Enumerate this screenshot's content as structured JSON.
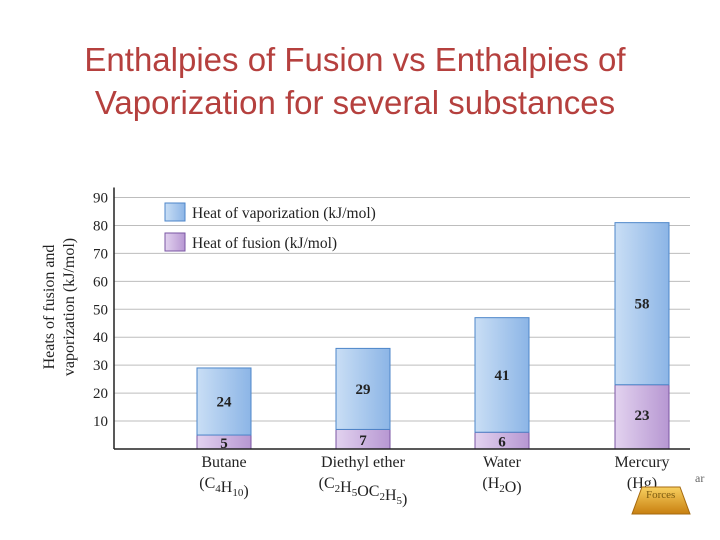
{
  "slide": {
    "title_line1": "Enthalpies of Fusion vs Enthalpies of",
    "title_line2": "Vaporization for several substances",
    "footer_fragment": "ar",
    "footer_icon_label": "Forces"
  },
  "colors": {
    "title": "#b5403e",
    "vaporization_top": "#c9def5",
    "vaporization_bottom": "#8cb5e6",
    "vaporization_stroke": "#4d86c9",
    "fusion_top": "#e2d2ef",
    "fusion_bottom": "#b797d2",
    "fusion_stroke": "#7a56a3",
    "axis": "#222222",
    "grid": "#bdbdbd",
    "nav_icon": "#e0a020"
  },
  "chart_data": {
    "type": "bar",
    "stacked": true,
    "title": "",
    "ylabel_line1": "Heats of fusion and",
    "ylabel_line2": "vaporization (kJ/mol)",
    "xlabel": "",
    "ylim": [
      0,
      90
    ],
    "yticks": [
      10,
      20,
      30,
      40,
      50,
      60,
      70,
      80,
      90
    ],
    "grid": true,
    "legend_position": "top-left",
    "categories": [
      {
        "name": "Butane",
        "formula": "(C4H10)",
        "formula_parts": [
          [
            "(C",
            ""
          ],
          [
            "4",
            "sub"
          ],
          [
            "H",
            ""
          ],
          [
            "10",
            "sub"
          ],
          [
            ")",
            ""
          ]
        ]
      },
      {
        "name": "Diethyl ether",
        "formula": "(C2H5OC2H5)",
        "formula_parts": [
          [
            "(C",
            ""
          ],
          [
            "2",
            "sub"
          ],
          [
            "H",
            ""
          ],
          [
            "5",
            "sub"
          ],
          [
            "OC",
            ""
          ],
          [
            "2",
            "sub"
          ],
          [
            "H",
            ""
          ],
          [
            "5",
            "sub"
          ],
          [
            ")",
            ""
          ]
        ]
      },
      {
        "name": "Water",
        "formula": "(H2O)",
        "formula_parts": [
          [
            "(H",
            ""
          ],
          [
            "2",
            "sub"
          ],
          [
            "O)",
            ""
          ]
        ]
      },
      {
        "name": "Mercury",
        "formula": "(Hg)",
        "formula_parts": [
          [
            "(Hg)",
            ""
          ]
        ]
      }
    ],
    "series": [
      {
        "name": "Heat of fusion (kJ/mol)",
        "key": "fusion",
        "values": [
          5,
          7,
          6,
          23
        ]
      },
      {
        "name": "Heat of vaporization (kJ/mol)",
        "key": "vaporization",
        "values": [
          24,
          29,
          41,
          58
        ]
      }
    ],
    "legend_order": [
      "Heat of vaporization (kJ/mol)",
      "Heat of fusion (kJ/mol)"
    ]
  }
}
